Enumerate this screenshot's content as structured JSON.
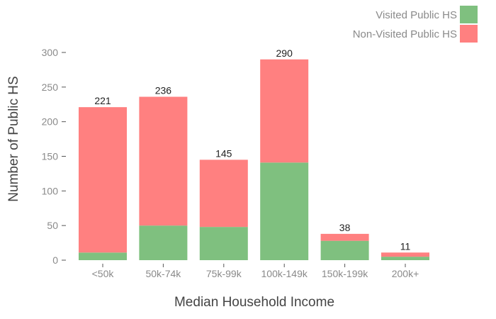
{
  "chart_data": {
    "type": "bar",
    "stacked": true,
    "categories": [
      "<50k",
      "50k-74k",
      "75k-99k",
      "100k-149k",
      "150k-199k",
      "200k+"
    ],
    "series": [
      {
        "name": "Visited Public HS",
        "color": "#7fc07f",
        "values": [
          11,
          50,
          48,
          141,
          28,
          5
        ]
      },
      {
        "name": "Non-Visited Public HS",
        "color": "#ff8080",
        "values": [
          210,
          186,
          97,
          149,
          10,
          6
        ]
      }
    ],
    "totals": [
      "221",
      "236",
      "145",
      "290",
      "38",
      "11"
    ],
    "yticks": [
      "0",
      "50",
      "100",
      "150",
      "200",
      "250",
      "300"
    ],
    "xlabel": "Median Household Income",
    "ylabel": "Number of Public HS",
    "ylim": [
      0,
      300
    ],
    "legend_position": "top-right",
    "grid": false
  }
}
